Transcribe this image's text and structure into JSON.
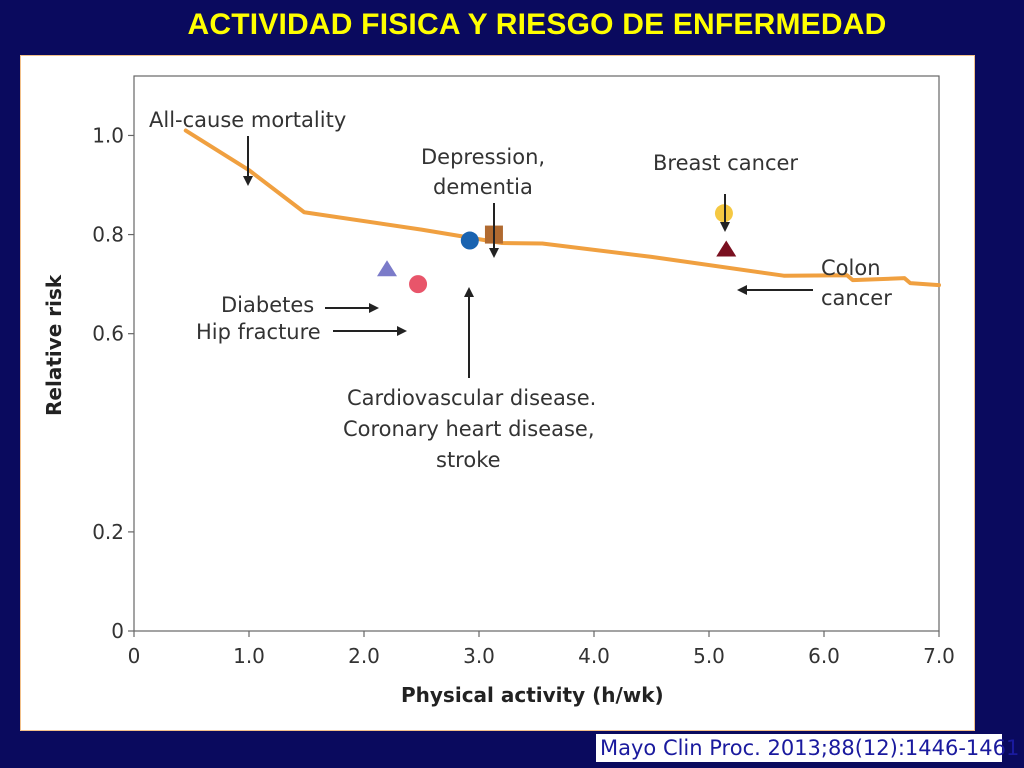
{
  "slide_title": "ACTIVIDAD FISICA Y RIESGO DE ENFERMEDAD",
  "citation": "Mayo Clin Proc. 2013;88(12):1446-1461",
  "colors": {
    "background": "#0a0a5e",
    "title": "#ffff00",
    "line": "#f0a040",
    "diabetes": "#7b7bc9",
    "hip_fracture": "#e8556a",
    "cardiovascular": "#1a63b0",
    "depression": "#b06a30",
    "breast_cancer": "#f5c842",
    "colon_cancer": "#7a1020"
  },
  "chart_data": {
    "type": "line",
    "xlabel": "Physical activity (h/wk)",
    "ylabel": "Relative risk",
    "xlim": [
      0,
      7
    ],
    "ylim": [
      0,
      1.12
    ],
    "x_ticks": [
      "0",
      "1.0",
      "2.0",
      "3.0",
      "4.0",
      "5.0",
      "6.0",
      "7.0"
    ],
    "x_tick_values": [
      0,
      1,
      2,
      3,
      4,
      5,
      6,
      7
    ],
    "y_ticks": [
      "0",
      "0.2",
      "0.6",
      "0.8",
      "1.0"
    ],
    "y_tick_values": [
      0,
      0.2,
      0.6,
      0.8,
      1.0
    ],
    "grid": false,
    "series": [
      {
        "label": "All-cause mortality",
        "x": [
          0.45,
          1.0,
          1.48,
          2.5,
          3.2,
          3.55,
          4.5,
          5.65,
          6.2,
          6.25,
          6.7,
          6.75,
          7.0
        ],
        "y": [
          1.01,
          0.93,
          0.845,
          0.81,
          0.783,
          0.782,
          0.755,
          0.717,
          0.718,
          0.708,
          0.712,
          0.702,
          0.698
        ]
      }
    ],
    "points": [
      {
        "label": "Diabetes",
        "x": 2.2,
        "y": 0.73,
        "marker": "triangle",
        "color_key": "diabetes"
      },
      {
        "label": "Hip fracture",
        "x": 2.47,
        "y": 0.7,
        "marker": "circle",
        "color_key": "hip_fracture"
      },
      {
        "label": "Cardiovascular disease. Coronary heart disease, stroke",
        "x": 2.92,
        "y": 0.788,
        "marker": "circle",
        "color_key": "cardiovascular"
      },
      {
        "label": "Depression, dementia",
        "x": 3.13,
        "y": 0.8,
        "marker": "square",
        "color_key": "depression"
      },
      {
        "label": "Breast cancer",
        "x": 5.13,
        "y": 0.843,
        "marker": "circle",
        "color_key": "breast_cancer"
      },
      {
        "label": "Colon cancer",
        "x": 5.15,
        "y": 0.77,
        "marker": "triangle",
        "color_key": "colon_cancer"
      }
    ],
    "annotations": {
      "all_cause": "All-cause mortality",
      "depression_1": "Depression,",
      "depression_2": "dementia",
      "breast": "Breast cancer",
      "colon_1": "Colon",
      "colon_2": "cancer",
      "diabetes": "Diabetes",
      "hip": "Hip fracture",
      "cardio_1": "Cardiovascular disease.",
      "cardio_2": "Coronary heart disease,",
      "cardio_3": "stroke"
    }
  }
}
